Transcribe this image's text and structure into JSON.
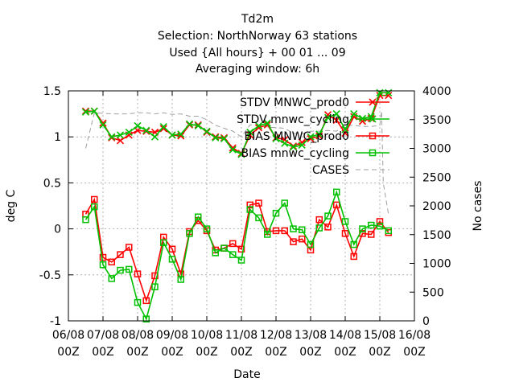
{
  "chart_data": {
    "type": "line",
    "title": [
      "Td2m",
      "Selection: NorthNorway     63 stations",
      "Used {All hours} + 00 01 ... 09",
      "Averaging window:  6h"
    ],
    "xlabel": "Date",
    "ylabel": "deg C",
    "y2label": "No cases",
    "xlim": [
      0,
      10
    ],
    "ylim": [
      -1,
      1.5
    ],
    "y2lim": [
      0,
      4000
    ],
    "x_ticks": [
      {
        "x": 0,
        "l1": "06/08",
        "l2": "00Z"
      },
      {
        "x": 1,
        "l1": "07/08",
        "l2": "00Z"
      },
      {
        "x": 2,
        "l1": "08/08",
        "l2": "00Z"
      },
      {
        "x": 3,
        "l1": "09/08",
        "l2": "00Z"
      },
      {
        "x": 4,
        "l1": "10/08",
        "l2": "00Z"
      },
      {
        "x": 5,
        "l1": "11/08",
        "l2": "00Z"
      },
      {
        "x": 6,
        "l1": "12/08",
        "l2": "00Z"
      },
      {
        "x": 7,
        "l1": "13/08",
        "l2": "00Z"
      },
      {
        "x": 8,
        "l1": "14/08",
        "l2": "00Z"
      },
      {
        "x": 9,
        "l1": "15/08",
        "l2": "00Z"
      },
      {
        "x": 10,
        "l1": "16/08",
        "l2": "00Z"
      }
    ],
    "y_ticks": [
      -1,
      -0.5,
      0,
      0.5,
      1,
      1.5
    ],
    "y_tick_labels": [
      "-1",
      "-0.5",
      "0",
      "0.5",
      "1",
      "1.5"
    ],
    "y2_ticks": [
      0,
      500,
      1000,
      1500,
      2000,
      2500,
      3000,
      3500,
      4000
    ],
    "grid": true,
    "legend_position": "top-right",
    "x": [
      0.5,
      0.75,
      1.0,
      1.25,
      1.5,
      1.75,
      2.0,
      2.25,
      2.5,
      2.75,
      3.0,
      3.25,
      3.5,
      3.75,
      4.0,
      4.25,
      4.5,
      4.75,
      5.0,
      5.25,
      5.5,
      5.75,
      6.0,
      6.25,
      6.5,
      6.75,
      7.0,
      7.25,
      7.5,
      7.75,
      8.0,
      8.25,
      8.5,
      8.75,
      9.0,
      9.25
    ],
    "series": [
      {
        "name": "STDV MNWC_prod0",
        "color": "#ff0000",
        "marker": "x",
        "axis": "y1",
        "values": [
          1.28,
          1.28,
          1.15,
          0.99,
          0.96,
          1.02,
          1.07,
          1.06,
          1.05,
          1.09,
          1.02,
          1.01,
          1.13,
          1.13,
          1.05,
          1.0,
          0.99,
          0.88,
          0.82,
          1.02,
          1.1,
          1.13,
          0.99,
          0.97,
          0.9,
          0.94,
          0.98,
          1.01,
          1.24,
          1.18,
          1.04,
          1.22,
          1.17,
          1.2,
          1.45,
          1.45
        ]
      },
      {
        "name": "STDV mnwc_cycling",
        "color": "#00c000",
        "marker": "x",
        "axis": "y1",
        "values": [
          1.27,
          1.28,
          1.13,
          1.0,
          1.02,
          1.05,
          1.12,
          1.07,
          1.0,
          1.11,
          1.02,
          1.03,
          1.14,
          1.12,
          1.06,
          0.99,
          0.98,
          0.86,
          0.81,
          1.05,
          1.12,
          1.15,
          0.98,
          0.93,
          0.89,
          0.91,
          1.0,
          1.03,
          1.21,
          1.25,
          1.08,
          1.25,
          1.2,
          1.22,
          1.48,
          1.48
        ]
      },
      {
        "name": "BIAS MNWC_prod0",
        "color": "#ff0000",
        "marker": "square",
        "axis": "y1",
        "values": [
          0.16,
          0.32,
          -0.31,
          -0.36,
          -0.28,
          -0.2,
          -0.49,
          -0.78,
          -0.51,
          -0.09,
          -0.22,
          -0.49,
          -0.03,
          0.09,
          -0.02,
          -0.23,
          -0.21,
          -0.16,
          -0.22,
          0.26,
          0.28,
          -0.03,
          -0.02,
          -0.02,
          -0.14,
          -0.11,
          -0.23,
          0.1,
          0.02,
          0.26,
          -0.05,
          -0.3,
          -0.05,
          -0.06,
          0.08,
          -0.04
        ]
      },
      {
        "name": "BIAS mnwc_cycling",
        "color": "#00c000",
        "marker": "square",
        "axis": "y1",
        "values": [
          0.1,
          0.24,
          -0.39,
          -0.54,
          -0.45,
          -0.44,
          -0.8,
          -0.98,
          -0.63,
          -0.15,
          -0.33,
          -0.55,
          -0.05,
          0.13,
          0.0,
          -0.26,
          -0.21,
          -0.28,
          -0.34,
          0.21,
          0.12,
          -0.06,
          0.17,
          0.28,
          0.0,
          -0.01,
          -0.17,
          0.01,
          0.14,
          0.4,
          0.08,
          -0.17,
          0.0,
          0.04,
          0.03,
          -0.02
        ]
      },
      {
        "name": "CASES",
        "color": "#a0a0a0",
        "marker": "none",
        "dash": true,
        "axis": "y2",
        "values": [
          3000,
          3620,
          3610,
          3600,
          3600,
          3600,
          3620,
          3620,
          3600,
          3620,
          3590,
          3600,
          3560,
          3560,
          3500,
          3400,
          3350,
          3300,
          3200,
          3410,
          3400,
          3370,
          3360,
          3350,
          3260,
          3250,
          3300,
          3300,
          3310,
          3300,
          3400,
          3400,
          3380,
          3380,
          3400,
          3400
        ]
      }
    ],
    "cases_tail": {
      "x": [
        9.0,
        9.05,
        9.1,
        9.25
      ],
      "y2": [
        3400,
        3650,
        2400,
        1850
      ]
    }
  }
}
